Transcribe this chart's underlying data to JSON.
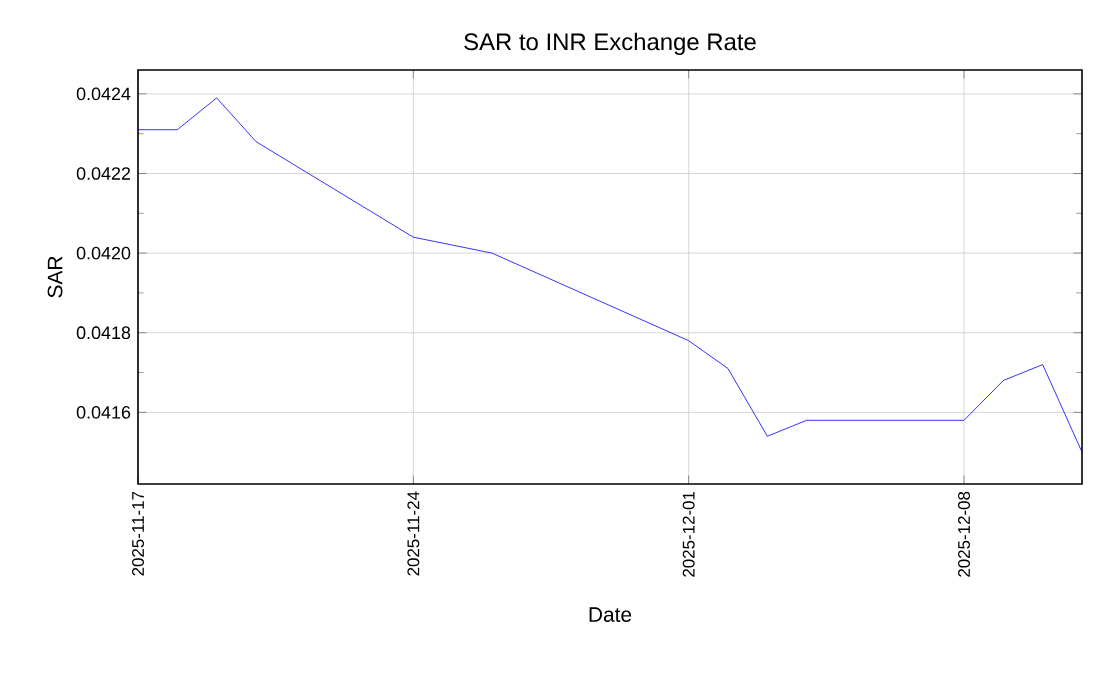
{
  "chart_data": {
    "type": "line",
    "title": "SAR to INR Exchange Rate",
    "xlabel": "Date",
    "ylabel": "SAR",
    "x": [
      "2025-11-17",
      "2025-11-18",
      "2025-11-19",
      "2025-11-20",
      "2025-11-24",
      "2025-11-26",
      "2025-12-01",
      "2025-12-02",
      "2025-12-03",
      "2025-12-04",
      "2025-12-05",
      "2025-12-08",
      "2025-12-09",
      "2025-12-10",
      "2025-12-11"
    ],
    "series": [
      {
        "color": "#0000ff",
        "values": [
          0.04231,
          0.04231,
          0.04239,
          0.04228,
          0.04204,
          0.042,
          0.04178,
          0.04171,
          0.04154,
          0.04158,
          0.04158,
          0.04158,
          0.04168,
          0.04172,
          0.0415
        ]
      }
    ],
    "xlim": [
      "2025-11-17",
      "2025-12-11"
    ],
    "xticks": [
      "2025-11-17",
      "2025-11-24",
      "2025-12-01",
      "2025-12-08"
    ],
    "ylim": [
      0.04142,
      0.04246
    ],
    "yticks": [
      0.0416,
      0.0418,
      {
        "value": 0.042,
        "label": "0.0420"
      },
      0.0422,
      0.0424
    ],
    "grid": true,
    "marker": "none",
    "line_style": "solid"
  }
}
